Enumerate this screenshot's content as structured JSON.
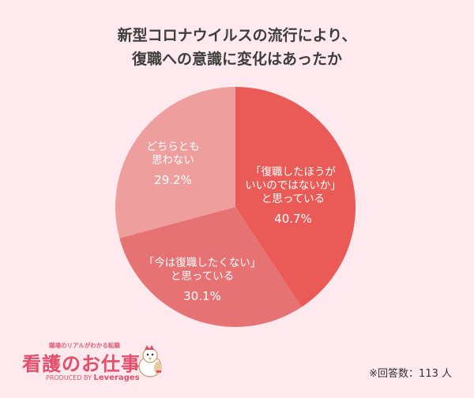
{
  "title": {
    "line1": "新型コロナウイルスの流行により、",
    "line2": "復職への意識に変化はあったか"
  },
  "chart_data": {
    "type": "pie",
    "title": "新型コロナウイルスの流行により、復職への意識に変化はあったか",
    "slices": [
      {
        "label_lines": [
          "「復職したほうが",
          "いいのではないか」",
          "と思っている"
        ],
        "value": 40.7,
        "value_label": "40.7%",
        "color": "#ea5a56"
      },
      {
        "label_lines": [
          "「今は復職したくない」",
          "と思っている"
        ],
        "value": 30.1,
        "value_label": "30.1%",
        "color": "#e67273"
      },
      {
        "label_lines": [
          "どちらとも",
          "思わない"
        ],
        "value": 29.2,
        "value_label": "29.2%",
        "color": "#ee9f9d"
      }
    ]
  },
  "note": "※回答数：113 人",
  "brand": {
    "tagline": "職場のリアルがわかる転職",
    "name": "看護のお仕事",
    "produced_by": "PRODUCED BY",
    "company": "Leverages"
  }
}
